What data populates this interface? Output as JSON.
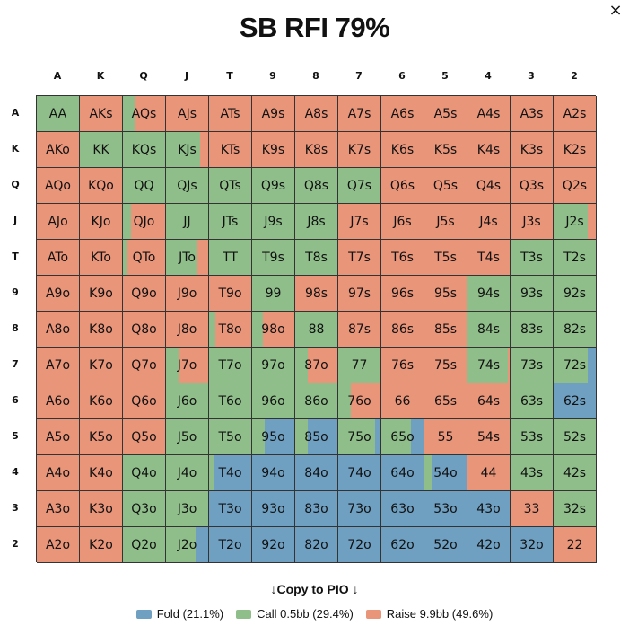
{
  "window": {
    "close_label": "×"
  },
  "title": "SB RFI 79%",
  "colors": {
    "fold": "#6fa0c2",
    "call": "#8fbe8b",
    "raise": "#e9957a",
    "border": "#333333"
  },
  "col_headers": [
    "A",
    "K",
    "Q",
    "J",
    "T",
    "9",
    "8",
    "7",
    "6",
    "5",
    "4",
    "3",
    "2"
  ],
  "row_headers": [
    "A",
    "K",
    "Q",
    "J",
    "T",
    "9",
    "8",
    "7",
    "6",
    "5",
    "4",
    "3",
    "2"
  ],
  "grid": [
    [
      {
        "hand": "AA",
        "c": 100
      },
      {
        "hand": "AKs",
        "r": 100
      },
      {
        "hand": "AQs",
        "c": 30,
        "r": 70
      },
      {
        "hand": "AJs",
        "r": 100
      },
      {
        "hand": "ATs",
        "r": 100
      },
      {
        "hand": "A9s",
        "r": 100
      },
      {
        "hand": "A8s",
        "r": 100
      },
      {
        "hand": "A7s",
        "r": 100
      },
      {
        "hand": "A6s",
        "r": 100
      },
      {
        "hand": "A5s",
        "r": 100
      },
      {
        "hand": "A4s",
        "r": 100
      },
      {
        "hand": "A3s",
        "r": 100
      },
      {
        "hand": "A2s",
        "r": 100
      }
    ],
    [
      {
        "hand": "AKo",
        "r": 100
      },
      {
        "hand": "KK",
        "c": 100
      },
      {
        "hand": "KQs",
        "c": 100
      },
      {
        "hand": "KJs",
        "c": 80,
        "r": 20
      },
      {
        "hand": "KTs",
        "r": 100
      },
      {
        "hand": "K9s",
        "r": 100
      },
      {
        "hand": "K8s",
        "r": 100
      },
      {
        "hand": "K7s",
        "r": 100
      },
      {
        "hand": "K6s",
        "r": 100
      },
      {
        "hand": "K5s",
        "r": 100
      },
      {
        "hand": "K4s",
        "r": 100
      },
      {
        "hand": "K3s",
        "r": 100
      },
      {
        "hand": "K2s",
        "r": 100
      }
    ],
    [
      {
        "hand": "AQo",
        "r": 100
      },
      {
        "hand": "KQo",
        "r": 100
      },
      {
        "hand": "QQ",
        "c": 100
      },
      {
        "hand": "QJs",
        "c": 100
      },
      {
        "hand": "QTs",
        "c": 100
      },
      {
        "hand": "Q9s",
        "c": 100
      },
      {
        "hand": "Q8s",
        "c": 100
      },
      {
        "hand": "Q7s",
        "c": 100
      },
      {
        "hand": "Q6s",
        "r": 100
      },
      {
        "hand": "Q5s",
        "r": 100
      },
      {
        "hand": "Q4s",
        "r": 100
      },
      {
        "hand": "Q3s",
        "r": 100
      },
      {
        "hand": "Q2s",
        "r": 100
      }
    ],
    [
      {
        "hand": "AJo",
        "r": 100
      },
      {
        "hand": "KJo",
        "r": 100
      },
      {
        "hand": "QJo",
        "c": 20,
        "r": 80
      },
      {
        "hand": "JJ",
        "c": 100
      },
      {
        "hand": "JTs",
        "c": 100
      },
      {
        "hand": "J9s",
        "c": 100
      },
      {
        "hand": "J8s",
        "c": 100
      },
      {
        "hand": "J7s",
        "r": 100
      },
      {
        "hand": "J6s",
        "r": 100
      },
      {
        "hand": "J5s",
        "r": 100
      },
      {
        "hand": "J4s",
        "r": 100
      },
      {
        "hand": "J3s",
        "r": 100
      },
      {
        "hand": "J2s",
        "c": 80,
        "r": 20
      }
    ],
    [
      {
        "hand": "ATo",
        "r": 100
      },
      {
        "hand": "KTo",
        "r": 100
      },
      {
        "hand": "QTo",
        "c": 10,
        "r": 90
      },
      {
        "hand": "JTo",
        "c": 75,
        "r": 25
      },
      {
        "hand": "TT",
        "c": 100
      },
      {
        "hand": "T9s",
        "c": 100
      },
      {
        "hand": "T8s",
        "c": 100
      },
      {
        "hand": "T7s",
        "r": 100
      },
      {
        "hand": "T6s",
        "r": 100
      },
      {
        "hand": "T5s",
        "r": 100
      },
      {
        "hand": "T4s",
        "r": 100
      },
      {
        "hand": "T3s",
        "c": 100
      },
      {
        "hand": "T2s",
        "c": 100
      }
    ],
    [
      {
        "hand": "A9o",
        "r": 100
      },
      {
        "hand": "K9o",
        "r": 100
      },
      {
        "hand": "Q9o",
        "r": 100
      },
      {
        "hand": "J9o",
        "r": 100
      },
      {
        "hand": "T9o",
        "r": 100
      },
      {
        "hand": "99",
        "c": 100
      },
      {
        "hand": "98s",
        "r": 100
      },
      {
        "hand": "97s",
        "r": 100
      },
      {
        "hand": "96s",
        "r": 100
      },
      {
        "hand": "95s",
        "r": 100
      },
      {
        "hand": "94s",
        "c": 100
      },
      {
        "hand": "93s",
        "c": 100
      },
      {
        "hand": "92s",
        "c": 100
      }
    ],
    [
      {
        "hand": "A8o",
        "r": 100
      },
      {
        "hand": "K8o",
        "r": 100
      },
      {
        "hand": "Q8o",
        "r": 100
      },
      {
        "hand": "J8o",
        "r": 100
      },
      {
        "hand": "T8o",
        "c": 15,
        "r": 85
      },
      {
        "hand": "98o",
        "c": 25,
        "r": 75
      },
      {
        "hand": "88",
        "c": 100
      },
      {
        "hand": "87s",
        "r": 100
      },
      {
        "hand": "86s",
        "r": 100
      },
      {
        "hand": "85s",
        "r": 100
      },
      {
        "hand": "84s",
        "c": 100
      },
      {
        "hand": "83s",
        "c": 100
      },
      {
        "hand": "82s",
        "c": 100
      }
    ],
    [
      {
        "hand": "A7o",
        "r": 100
      },
      {
        "hand": "K7o",
        "r": 100
      },
      {
        "hand": "Q7o",
        "r": 100
      },
      {
        "hand": "J7o",
        "c": 30,
        "r": 70
      },
      {
        "hand": "T7o",
        "c": 100
      },
      {
        "hand": "97o",
        "c": 100
      },
      {
        "hand": "87o",
        "c": 30,
        "r": 70
      },
      {
        "hand": "77",
        "c": 100
      },
      {
        "hand": "76s",
        "r": 100
      },
      {
        "hand": "75s",
        "r": 100
      },
      {
        "hand": "74s",
        "c": 95,
        "r": 5
      },
      {
        "hand": "73s",
        "c": 100
      },
      {
        "hand": "72s",
        "c": 80,
        "f": 20
      }
    ],
    [
      {
        "hand": "A6o",
        "r": 100
      },
      {
        "hand": "K6o",
        "r": 100
      },
      {
        "hand": "Q6o",
        "r": 100
      },
      {
        "hand": "J6o",
        "c": 100
      },
      {
        "hand": "T6o",
        "c": 100
      },
      {
        "hand": "96o",
        "c": 100
      },
      {
        "hand": "86o",
        "c": 100
      },
      {
        "hand": "76o",
        "c": 30,
        "r": 70
      },
      {
        "hand": "66",
        "r": 100
      },
      {
        "hand": "65s",
        "r": 100
      },
      {
        "hand": "64s",
        "r": 100
      },
      {
        "hand": "63s",
        "c": 100
      },
      {
        "hand": "62s",
        "f": 100
      }
    ],
    [
      {
        "hand": "A5o",
        "r": 100
      },
      {
        "hand": "K5o",
        "r": 100
      },
      {
        "hand": "Q5o",
        "r": 100
      },
      {
        "hand": "J5o",
        "c": 100
      },
      {
        "hand": "T5o",
        "c": 100
      },
      {
        "hand": "95o",
        "c": 30,
        "f": 70
      },
      {
        "hand": "85o",
        "c": 30,
        "f": 70
      },
      {
        "hand": "75o",
        "c": 88,
        "f": 12
      },
      {
        "hand": "65o",
        "c": 70,
        "f": 30
      },
      {
        "hand": "55",
        "r": 100
      },
      {
        "hand": "54s",
        "r": 100
      },
      {
        "hand": "53s",
        "c": 100
      },
      {
        "hand": "52s",
        "c": 100
      }
    ],
    [
      {
        "hand": "A4o",
        "r": 100
      },
      {
        "hand": "K4o",
        "r": 100
      },
      {
        "hand": "Q4o",
        "c": 100
      },
      {
        "hand": "J4o",
        "c": 100
      },
      {
        "hand": "T4o",
        "c": 10,
        "f": 90
      },
      {
        "hand": "94o",
        "f": 100
      },
      {
        "hand": "84o",
        "f": 100
      },
      {
        "hand": "74o",
        "f": 100
      },
      {
        "hand": "64o",
        "f": 100
      },
      {
        "hand": "54o",
        "c": 20,
        "f": 80
      },
      {
        "hand": "44",
        "r": 100
      },
      {
        "hand": "43s",
        "c": 100
      },
      {
        "hand": "42s",
        "c": 100
      }
    ],
    [
      {
        "hand": "A3o",
        "r": 100
      },
      {
        "hand": "K3o",
        "r": 100
      },
      {
        "hand": "Q3o",
        "c": 100
      },
      {
        "hand": "J3o",
        "c": 100
      },
      {
        "hand": "T3o",
        "f": 100
      },
      {
        "hand": "93o",
        "f": 100
      },
      {
        "hand": "83o",
        "f": 100
      },
      {
        "hand": "73o",
        "f": 100
      },
      {
        "hand": "63o",
        "f": 100
      },
      {
        "hand": "53o",
        "f": 100
      },
      {
        "hand": "43o",
        "f": 100
      },
      {
        "hand": "33",
        "r": 100
      },
      {
        "hand": "32s",
        "c": 100
      }
    ],
    [
      {
        "hand": "A2o",
        "r": 100
      },
      {
        "hand": "K2o",
        "r": 100
      },
      {
        "hand": "Q2o",
        "c": 100
      },
      {
        "hand": "J2o",
        "c": 70,
        "f": 30
      },
      {
        "hand": "T2o",
        "f": 100
      },
      {
        "hand": "92o",
        "f": 100
      },
      {
        "hand": "82o",
        "f": 100
      },
      {
        "hand": "72o",
        "f": 100
      },
      {
        "hand": "62o",
        "f": 100
      },
      {
        "hand": "52o",
        "f": 100
      },
      {
        "hand": "42o",
        "f": 100
      },
      {
        "hand": "32o",
        "f": 100
      },
      {
        "hand": "22",
        "r": 100
      }
    ]
  ],
  "copy": {
    "label": "Copy to PIO",
    "arrow_left": "↓",
    "arrow_right": "↓"
  },
  "legend": [
    {
      "key": "fold",
      "label": "Fold (21.1%)"
    },
    {
      "key": "call",
      "label": "Call 0.5bb (29.4%)"
    },
    {
      "key": "raise",
      "label": "Raise 9.9bb (49.6%)"
    }
  ]
}
